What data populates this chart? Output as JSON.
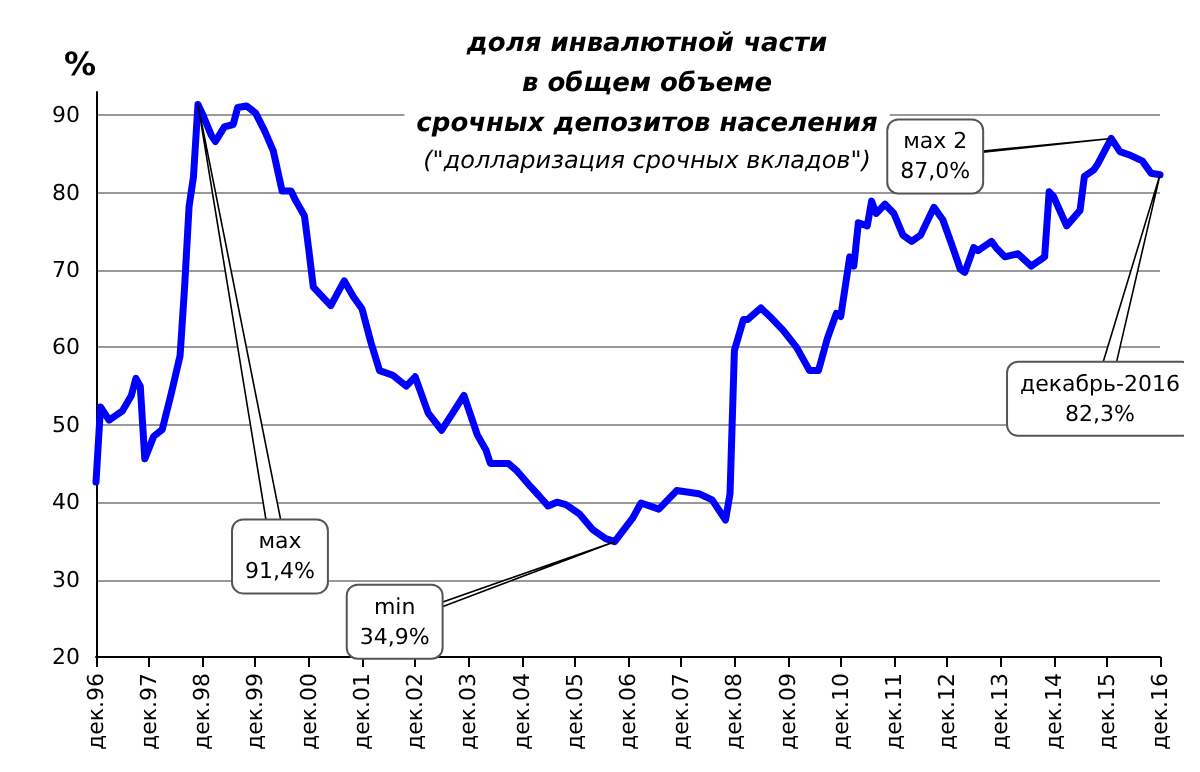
{
  "chart_data": {
    "type": "line",
    "title": "доля инвалютной части\nв общем объеме\nсрочных депозитов населения",
    "subtitle": "(\"долларизация срочных вкладов\")",
    "ylabel": "%",
    "x": [
      "1996-12",
      "1997-01",
      "1997-03",
      "1997-06",
      "1997-08",
      "1997-09",
      "1997-10",
      "1997-11",
      "1998-01",
      "1998-03",
      "1998-05",
      "1998-07",
      "1998-08",
      "1998-09",
      "1998-10",
      "1998-11",
      "1998-12",
      "1999-02",
      "1999-03",
      "1999-05",
      "1999-07",
      "1999-08",
      "1999-10",
      "1999-12",
      "2000-02",
      "2000-04",
      "2000-06",
      "2000-08",
      "2000-09",
      "2000-11",
      "2000-12",
      "2001-01",
      "2001-05",
      "2001-08",
      "2001-10",
      "2001-12",
      "2002-02",
      "2002-04",
      "2002-07",
      "2002-10",
      "2002-12",
      "2003-03",
      "2003-06",
      "2003-09",
      "2003-11",
      "2004-02",
      "2004-04",
      "2004-05",
      "2004-09",
      "2004-11",
      "2005-02",
      "2005-04",
      "2005-06",
      "2005-08",
      "2005-10",
      "2006-01",
      "2006-04",
      "2006-07",
      "2006-09",
      "2007-01",
      "2007-03",
      "2007-07",
      "2007-11",
      "2008-04",
      "2008-07",
      "2008-10",
      "2008-11",
      "2008-12",
      "2009-02",
      "2009-03",
      "2009-06",
      "2009-08",
      "2009-11",
      "2010-02",
      "2010-05",
      "2010-07",
      "2010-09",
      "2010-11",
      "2010-12",
      "2011-02",
      "2011-03",
      "2011-04",
      "2011-06",
      "2011-07",
      "2011-08",
      "2011-10",
      "2011-12",
      "2012-02",
      "2012-04",
      "2012-06",
      "2012-09",
      "2012-11",
      "2013-01",
      "2013-03",
      "2013-04",
      "2013-06",
      "2013-07",
      "2013-10",
      "2013-11",
      "2014-01",
      "2014-04",
      "2014-07",
      "2014-10",
      "2014-11",
      "2014-12",
      "2015-03",
      "2015-06",
      "2015-07",
      "2015-09",
      "2015-10",
      "2016-01",
      "2016-03",
      "2016-05",
      "2016-08",
      "2016-10",
      "2016-12"
    ],
    "series": [
      {
        "color": "#0000ff",
        "values": [
          42.6,
          52.3,
          50.6,
          51.8,
          53.8,
          56.0,
          55.0,
          45.6,
          48.5,
          49.4,
          54.0,
          58.9,
          67.7,
          78.2,
          82.0,
          91.4,
          90.2,
          87.4,
          86.6,
          88.5,
          88.8,
          91.0,
          91.2,
          90.3,
          88.0,
          85.4,
          80.2,
          80.2,
          79.0,
          77.0,
          72.6,
          67.8,
          65.4,
          68.6,
          66.6,
          65.0,
          60.6,
          57.0,
          56.4,
          55.0,
          56.2,
          51.5,
          49.3,
          52.0,
          53.8,
          48.7,
          46.7,
          45.0,
          45.0,
          44.0,
          42.0,
          40.8,
          39.5,
          40.0,
          39.7,
          38.5,
          36.5,
          35.3,
          34.9,
          37.9,
          39.9,
          39.1,
          41.5,
          41.1,
          40.3,
          37.7,
          41.1,
          59.6,
          63.6,
          63.6,
          65.1,
          64.0,
          62.2,
          60.0,
          57.0,
          57.0,
          61.2,
          64.4,
          64.0,
          71.7,
          70.5,
          76.1,
          75.7,
          78.9,
          77.3,
          78.5,
          77.3,
          74.5,
          73.7,
          74.5,
          78.1,
          76.5,
          73.3,
          70.1,
          69.7,
          72.9,
          72.5,
          73.7,
          72.9,
          71.7,
          72.1,
          70.5,
          71.7,
          80.1,
          79.5,
          75.7,
          77.7,
          82.1,
          82.9,
          83.7,
          87.0,
          85.3,
          84.9,
          84.1,
          82.5,
          82.3
        ]
      }
    ],
    "xlim": [
      "1996-12",
      "2016-12"
    ],
    "xticks": [
      {
        "value": "1996-12",
        "label": "дек.96"
      },
      {
        "value": "1997-12",
        "label": "дек.97"
      },
      {
        "value": "1998-12",
        "label": "дек.98"
      },
      {
        "value": "1999-12",
        "label": "дек.99"
      },
      {
        "value": "2000-12",
        "label": "дек.00"
      },
      {
        "value": "2001-12",
        "label": "дек.01"
      },
      {
        "value": "2002-12",
        "label": "дек.02"
      },
      {
        "value": "2003-12",
        "label": "дек.03"
      },
      {
        "value": "2004-12",
        "label": "дек.04"
      },
      {
        "value": "2005-12",
        "label": "дек.05"
      },
      {
        "value": "2006-12",
        "label": "дек.06"
      },
      {
        "value": "2007-12",
        "label": "дек.07"
      },
      {
        "value": "2008-12",
        "label": "дек.08"
      },
      {
        "value": "2009-12",
        "label": "дек.09"
      },
      {
        "value": "2010-12",
        "label": "дек.10"
      },
      {
        "value": "2011-12",
        "label": "дек.11"
      },
      {
        "value": "2012-12",
        "label": "дек.12"
      },
      {
        "value": "2013-12",
        "label": "дек.13"
      },
      {
        "value": "2014-12",
        "label": "дек.14"
      },
      {
        "value": "2015-12",
        "label": "дек.15"
      },
      {
        "value": "2016-12",
        "label": "дек.16"
      }
    ],
    "ylim": [
      20,
      93
    ],
    "yticks": [
      20,
      30,
      40,
      50,
      60,
      70,
      80,
      90
    ],
    "grid": "y",
    "marker": "none",
    "line_style": "solid",
    "annotations": [
      {
        "text": "мах\n91,4%",
        "x": "1998-11",
        "y": 91.4
      },
      {
        "text": "min\n34,9%",
        "x": "2006-09",
        "y": 34.9
      },
      {
        "text": "мах 2\n87,0%",
        "x": "2016-01",
        "y": 87.0
      },
      {
        "text": "декабрь-2016\n82,3%",
        "x": "2016-12",
        "y": 82.3
      }
    ]
  }
}
